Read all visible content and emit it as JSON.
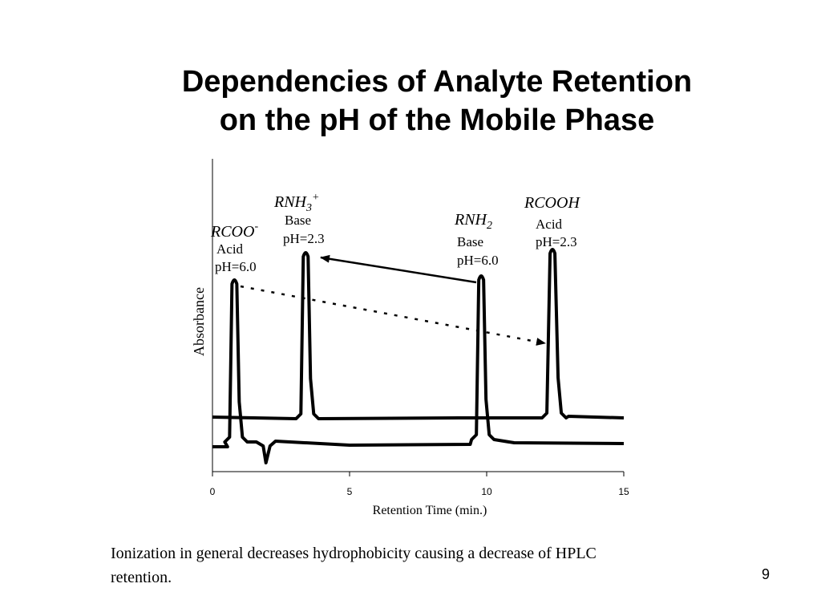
{
  "slide": {
    "title_line1": "Dependencies of Analyte Retention",
    "title_line2": "on the pH of the Mobile Phase",
    "caption_line1": "Ionization in general decreases hydrophobicity causing a decrease of HPLC",
    "caption_line2": "retention.",
    "page_number": "9"
  },
  "chart_data": {
    "type": "line",
    "xlabel": "Retention Time (min.)",
    "ylabel": "Absorbance",
    "xlim": [
      0,
      15
    ],
    "x_ticks": [
      {
        "value": 0,
        "label": "0"
      },
      {
        "value": 5,
        "label": "5"
      },
      {
        "value": 10,
        "label": "10"
      },
      {
        "value": 15,
        "label": "15"
      }
    ],
    "grid": false,
    "traces": [
      {
        "condition": "pH=2.3",
        "peaks": [
          {
            "compound": "RNH3+",
            "kind": "Base",
            "condition": "pH=2.3",
            "retention_time": 3.4
          },
          {
            "compound": "RCOOH",
            "kind": "Acid",
            "condition": "pH=2.3",
            "retention_time": 12.4
          }
        ]
      },
      {
        "condition": "pH=6.0",
        "peaks": [
          {
            "compound": "RCOO-",
            "kind": "Acid",
            "condition": "pH=6.0",
            "retention_time": 0.8
          },
          {
            "compound": "RNH2",
            "kind": "Base",
            "condition": "pH=6.0",
            "retention_time": 9.8
          }
        ]
      }
    ],
    "annotations": [
      {
        "from": "RNH2",
        "to": "RNH3+",
        "style": "solid-arrow"
      },
      {
        "from": "RCOO-",
        "to": "RCOOH",
        "style": "dotted-arrow"
      }
    ],
    "labels": {
      "rnh3": {
        "name": "RNH",
        "sub": "3",
        "sup": "+",
        "kind": "Base",
        "cond": "pH=2.3"
      },
      "rcoo": {
        "name": "RCOO",
        "sup": "-",
        "kind": "Acid",
        "cond": "pH=6.0"
      },
      "rnh2": {
        "name": "RNH",
        "sub": "2",
        "kind": "Base",
        "cond": "pH=6.0"
      },
      "rcooh": {
        "name": "RCOOH",
        "kind": "Acid",
        "cond": "pH=2.3"
      }
    }
  }
}
